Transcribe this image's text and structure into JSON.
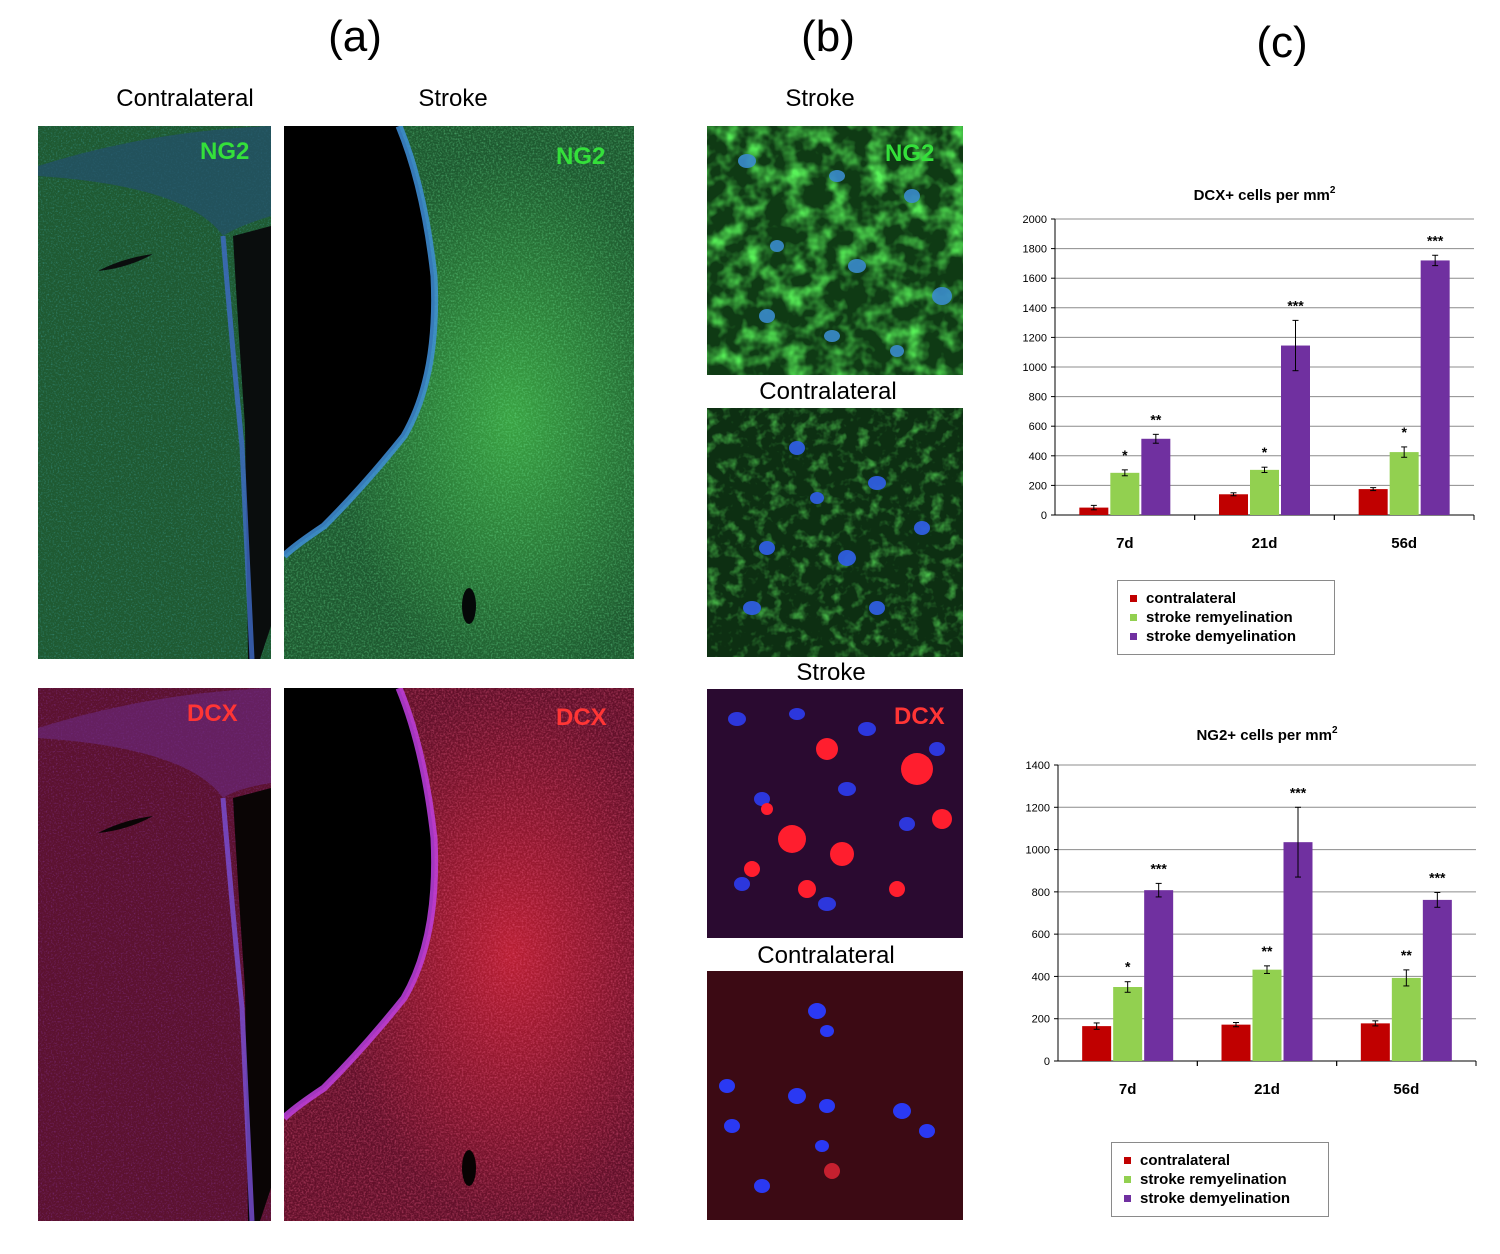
{
  "panels": {
    "a": "(a)",
    "b": "(b)",
    "c": "(c)"
  },
  "labels": {
    "a_contralateral": "Contralateral",
    "a_stroke": "Stroke",
    "b_stroke_1": "Stroke",
    "b_contralateral_1": "Contralateral",
    "b_stroke_2": "Stroke",
    "b_contralateral_2": "Contralateral"
  },
  "stains": {
    "ng2": "NG2",
    "dcx": "DCX"
  },
  "colors": {
    "ng2_green": "#34e03a",
    "dcx_red": "#ff3535",
    "nuclei_blue": "#2a3cff",
    "contralateral": "#c00000",
    "remyelination": "#92d050",
    "demyelination": "#7030a0"
  },
  "chart_data": [
    {
      "type": "bar",
      "title": "DCX+ cells per mm",
      "title_sup": "2",
      "categories": [
        "7d",
        "21d",
        "56d"
      ],
      "ylim": [
        0,
        2000
      ],
      "yticks": [
        "0",
        "200",
        "400",
        "600",
        "800",
        "1000",
        "1200",
        "1400",
        "1600",
        "1800",
        "2000"
      ],
      "grid": true,
      "legend_position": "bottom",
      "series": [
        {
          "name": "contralateral",
          "values": [
            50,
            140,
            175
          ],
          "errors": [
            15,
            10,
            10
          ],
          "stars": [
            "",
            "",
            ""
          ]
        },
        {
          "name": "stroke remyelination",
          "values": [
            285,
            305,
            425
          ],
          "errors": [
            20,
            18,
            35
          ],
          "stars": [
            "*",
            "*",
            "*"
          ]
        },
        {
          "name": "stroke demyelination",
          "values": [
            515,
            1145,
            1720
          ],
          "errors": [
            30,
            170,
            35
          ],
          "stars": [
            "**",
            "***",
            "***"
          ]
        }
      ]
    },
    {
      "type": "bar",
      "title": "NG2+ cells per mm",
      "title_sup": "2",
      "categories": [
        "7d",
        "21d",
        "56d"
      ],
      "ylim": [
        0,
        1400
      ],
      "yticks": [
        "0",
        "200",
        "400",
        "600",
        "800",
        "1000",
        "1200",
        "1400"
      ],
      "grid": true,
      "legend_position": "bottom",
      "series": [
        {
          "name": "contralateral",
          "values": [
            165,
            172,
            178
          ],
          "errors": [
            15,
            10,
            12
          ],
          "stars": [
            "",
            "",
            ""
          ]
        },
        {
          "name": "stroke remyelination",
          "values": [
            350,
            432,
            393
          ],
          "errors": [
            25,
            18,
            38
          ],
          "stars": [
            "*",
            "**",
            "**"
          ]
        },
        {
          "name": "stroke demyelination",
          "values": [
            808,
            1035,
            762
          ],
          "errors": [
            32,
            165,
            35
          ],
          "stars": [
            "***",
            "***",
            "***"
          ]
        }
      ]
    }
  ]
}
